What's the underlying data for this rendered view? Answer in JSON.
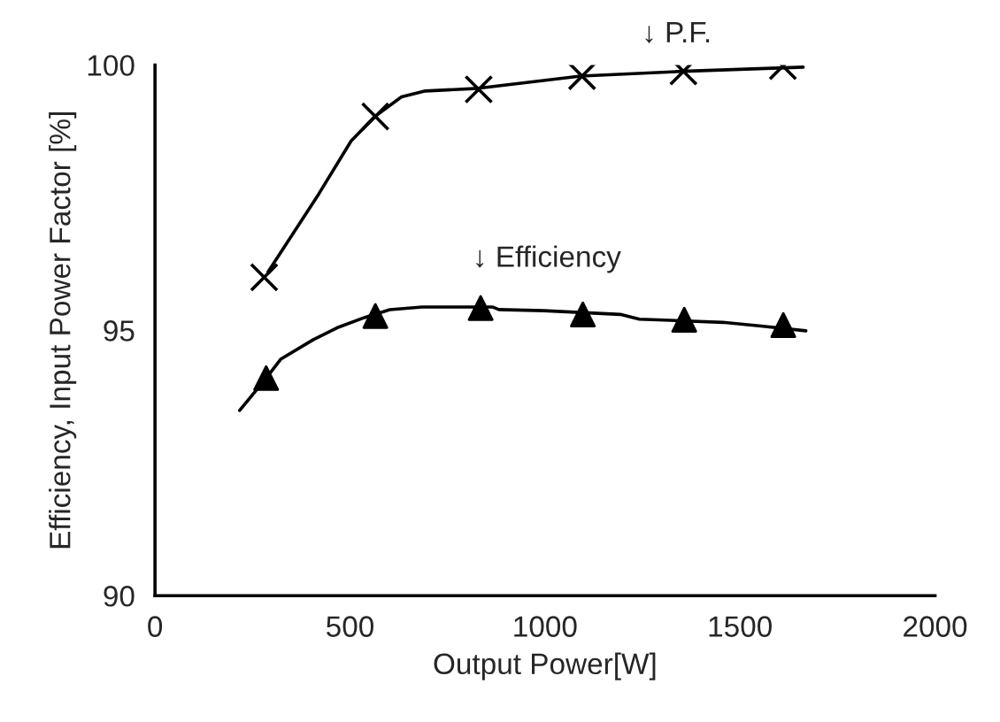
{
  "chart_data": {
    "type": "line",
    "xlabel": "Output Power[W]",
    "ylabel": "Efficiency, Input Power Factor [%]",
    "xlim": [
      0,
      2000
    ],
    "xticks": [
      0,
      500,
      1000,
      1500,
      2000
    ],
    "ylim": [
      90,
      100
    ],
    "yticks": [
      90,
      95,
      100
    ],
    "grid": false,
    "legend": false,
    "series": [
      {
        "color": "#000000",
        "marker": "none",
        "line_style": "solid",
        "x": [
          290,
          420,
          503,
          564,
          632,
          693,
          829,
          1091,
          1352,
          1662
        ],
        "values": [
          96.1,
          97.57,
          98.57,
          99.03,
          99.4,
          99.51,
          99.56,
          99.79,
          99.88,
          99.96
        ]
      },
      {
        "type": "scatter",
        "color": "#000000",
        "marker": "cross",
        "x": [
          280,
          565,
          830,
          1095,
          1355,
          1610
        ],
        "values": [
          96.0,
          99.03,
          99.54,
          99.79,
          99.88,
          99.98
        ]
      },
      {
        "color": "#000000",
        "marker": "none",
        "line_style": "solid",
        "x": [
          217,
          285,
          323,
          405,
          471,
          537,
          602,
          685,
          865,
          882,
          997,
          1193,
          1242,
          1456,
          1554,
          1669
        ],
        "values": [
          93.49,
          94.1,
          94.46,
          94.82,
          95.06,
          95.24,
          95.39,
          95.44,
          95.44,
          95.39,
          95.37,
          95.3,
          95.21,
          95.15,
          95.08,
          94.99
        ]
      },
      {
        "type": "scatter",
        "color": "#000000",
        "marker": "triangle",
        "x": [
          285,
          565,
          835,
          1097,
          1357,
          1611
        ],
        "values": [
          94.1,
          95.27,
          95.42,
          95.3,
          95.2,
          95.1
        ]
      }
    ],
    "annotations": [
      "↓ P.F.",
      "↓ Efficiency"
    ]
  }
}
